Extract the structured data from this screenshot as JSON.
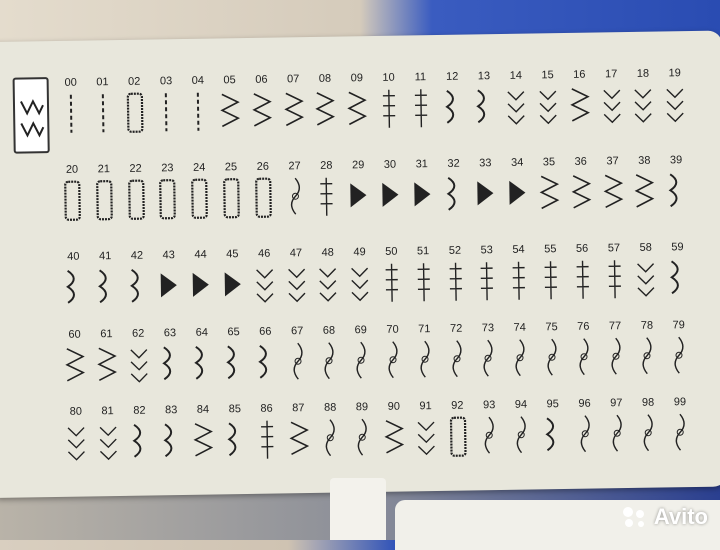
{
  "stitch_chart": {
    "numbers": [
      "00",
      "01",
      "02",
      "03",
      "04",
      "05",
      "06",
      "07",
      "08",
      "09",
      "10",
      "11",
      "12",
      "13",
      "14",
      "15",
      "16",
      "17",
      "18",
      "19",
      "20",
      "21",
      "22",
      "23",
      "24",
      "25",
      "26",
      "27",
      "28",
      "29",
      "30",
      "31",
      "32",
      "33",
      "34",
      "35",
      "36",
      "37",
      "38",
      "39",
      "40",
      "41",
      "42",
      "43",
      "44",
      "45",
      "46",
      "47",
      "48",
      "49",
      "50",
      "51",
      "52",
      "53",
      "54",
      "55",
      "56",
      "57",
      "58",
      "59",
      "60",
      "61",
      "62",
      "63",
      "64",
      "65",
      "66",
      "67",
      "68",
      "69",
      "70",
      "71",
      "72",
      "73",
      "74",
      "75",
      "76",
      "77",
      "78",
      "79",
      "80",
      "81",
      "82",
      "83",
      "84",
      "85",
      "86",
      "87",
      "88",
      "89",
      "90",
      "91",
      "92",
      "93",
      "94",
      "95",
      "96",
      "97",
      "98",
      "99"
    ],
    "mode_icon": "zigzag-stitch-icon",
    "text_color": "#222222",
    "card_color": "#e8e7dc"
  },
  "watermark": {
    "text": "Avito"
  }
}
